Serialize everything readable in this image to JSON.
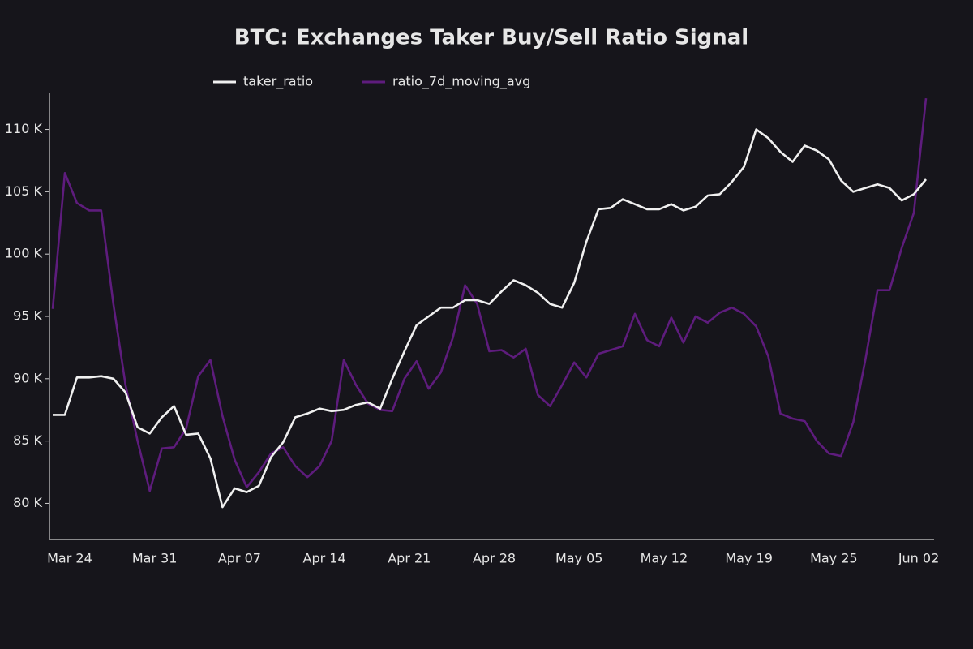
{
  "chart_data": {
    "type": "line",
    "title": "BTC: Exchanges Taker Buy/Sell Ratio Signal",
    "categories": [
      null,
      "Mar 24",
      null,
      null,
      null,
      null,
      null,
      null,
      "Mar 31",
      null,
      null,
      null,
      null,
      null,
      null,
      "Apr 07",
      null,
      null,
      null,
      null,
      null,
      null,
      "Apr 14",
      null,
      null,
      null,
      null,
      null,
      null,
      "Apr 21",
      null,
      null,
      null,
      null,
      null,
      null,
      "Apr 28",
      null,
      null,
      null,
      null,
      null,
      null,
      "May 05",
      null,
      null,
      null,
      null,
      null,
      null,
      "May 12",
      null,
      null,
      null,
      null,
      null,
      null,
      "May 19",
      null,
      null,
      null,
      null,
      null,
      null,
      "May 25",
      null,
      null,
      null,
      null,
      null,
      null,
      "Jun 02",
      null
    ],
    "series": [
      {
        "name": "taker_ratio",
        "color": "#f0f0f0",
        "values": [
          87100,
          87100,
          90100,
          90100,
          90200,
          90000,
          88900,
          86100,
          85600,
          86900,
          87800,
          85500,
          85600,
          83600,
          79700,
          81200,
          80900,
          81400,
          83700,
          84900,
          86900,
          87200,
          87600,
          87400,
          87500,
          87900,
          88100,
          87600,
          90000,
          92200,
          94300,
          95000,
          95700,
          95700,
          96300,
          96300,
          96000,
          97000,
          97900,
          97500,
          96900,
          96000,
          95700,
          97700,
          101000,
          103600,
          103700,
          104400,
          104000,
          103600,
          103600,
          104000,
          103500,
          103800,
          104700,
          104800,
          105800,
          107000,
          110000,
          109300,
          108200,
          107400,
          108700,
          108300,
          107600,
          105900,
          105000,
          105300,
          105600,
          105300,
          104300,
          104800,
          106000
        ]
      },
      {
        "name": "ratio_7d_moving_avg",
        "color": "#5e1c7d",
        "values": [
          95600,
          106500,
          104100,
          103500,
          103500,
          96000,
          89500,
          85000,
          81000,
          84400,
          84500,
          86000,
          90200,
          91500,
          87000,
          83500,
          81300,
          82500,
          84000,
          84500,
          83000,
          82100,
          83000,
          85000,
          91500,
          89500,
          88000,
          87500,
          87400,
          90000,
          91400,
          89200,
          90500,
          93300,
          97500,
          96000,
          92200,
          92300,
          91700,
          92400,
          88700,
          87800,
          89500,
          91300,
          90100,
          92000,
          92300,
          92600,
          95200,
          93100,
          92600,
          94900,
          92900,
          95000,
          94500,
          95300,
          95700,
          95200,
          94200,
          91800,
          87200,
          86800,
          86600,
          85000,
          84000,
          83800,
          86500,
          91500,
          97100,
          97100,
          100500,
          103300,
          112500
        ]
      }
    ],
    "ylim": [
      77100,
      112900
    ],
    "yticks": [
      {
        "value": 80000,
        "label": "80 K"
      },
      {
        "value": 85000,
        "label": "85 K"
      },
      {
        "value": 90000,
        "label": "90 K"
      },
      {
        "value": 95000,
        "label": "95 K"
      },
      {
        "value": 100000,
        "label": "100 K"
      },
      {
        "value": 105000,
        "label": "105 K"
      },
      {
        "value": 110000,
        "label": "110 K"
      }
    ]
  }
}
